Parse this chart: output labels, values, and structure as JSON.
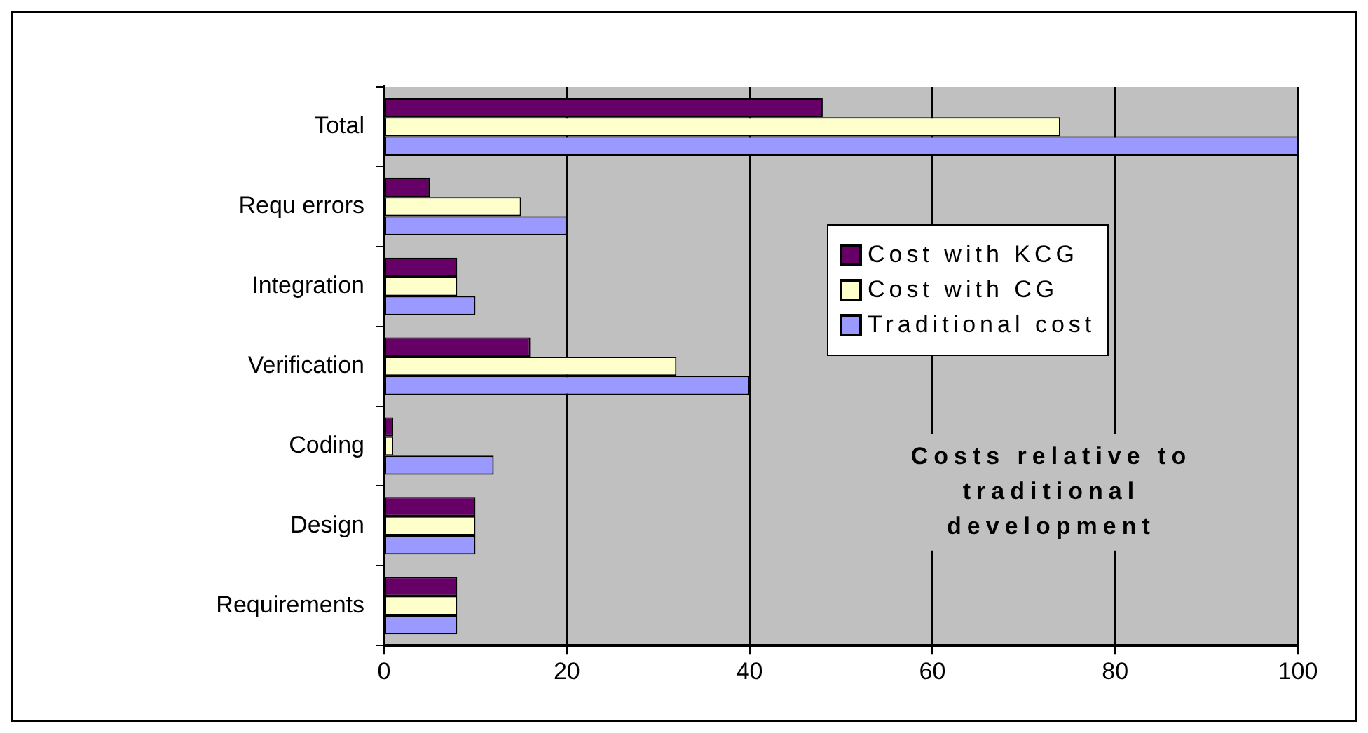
{
  "chart_data": {
    "type": "bar",
    "orientation": "horizontal",
    "categories": [
      "Total",
      "Requ errors",
      "Integration",
      "Verification",
      "Coding",
      "Design",
      "Requirements"
    ],
    "series": [
      {
        "name": "Cost with KCG",
        "color": "#660066",
        "values": [
          48,
          5,
          8,
          16,
          1,
          10,
          8
        ]
      },
      {
        "name": "Cost with CG",
        "color": "#ffffcc",
        "values": [
          74,
          15,
          8,
          32,
          1,
          10,
          8
        ]
      },
      {
        "name": "Traditional cost",
        "color": "#9999ff",
        "values": [
          100,
          20,
          10,
          40,
          12,
          10,
          8
        ]
      }
    ],
    "xlim": [
      0,
      100
    ],
    "xticks": [
      0,
      20,
      40,
      60,
      80,
      100
    ],
    "grid": "x",
    "legend": "right",
    "annotations": [
      "Costs relative to traditional development"
    ]
  }
}
